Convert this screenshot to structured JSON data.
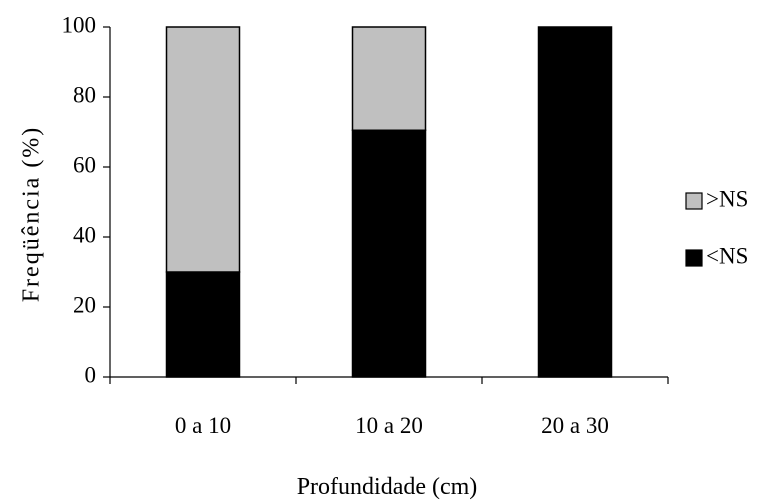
{
  "chart_data": {
    "type": "bar",
    "stacked": true,
    "categories": [
      "0 a 10",
      "10 a 20",
      "20 a 30"
    ],
    "series": [
      {
        "name": "<NS",
        "values": [
          30,
          70.5,
          100
        ],
        "color": "#000000"
      },
      {
        "name": ">NS",
        "values": [
          70,
          29.5,
          0
        ],
        "color": "#c0c0c0"
      }
    ],
    "legend_order": [
      1,
      0
    ],
    "title": "",
    "xlabel": "Profundidade (cm)",
    "ylabel": "Freqüência (%)",
    "ylim": [
      0,
      100
    ],
    "yticks": [
      0,
      20,
      40,
      60,
      80,
      100
    ],
    "grid": false,
    "legend_position": "right"
  }
}
